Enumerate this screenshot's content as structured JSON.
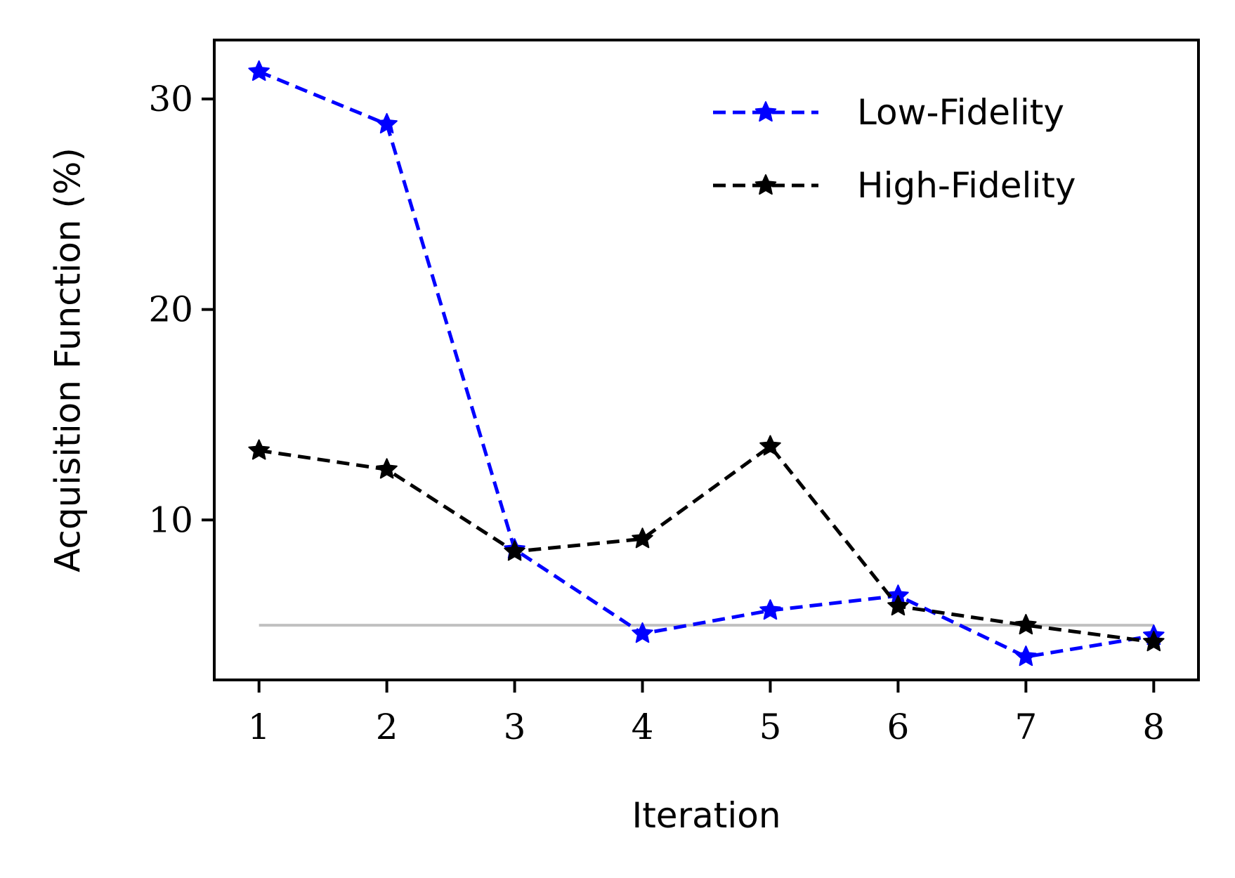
{
  "chart_data": {
    "type": "line",
    "title": "",
    "xlabel": "Iteration",
    "ylabel": "Acquisition Function (%)",
    "x": [
      1,
      2,
      3,
      4,
      5,
      6,
      7,
      8
    ],
    "xlim": [
      0.65,
      8.35
    ],
    "ylim": [
      2.4,
      32.8
    ],
    "xticks": [
      1,
      2,
      3,
      4,
      5,
      6,
      7,
      8
    ],
    "yticks": [
      10,
      20,
      30
    ],
    "grid": false,
    "legend_position": "top-right",
    "series": [
      {
        "name": "Low-Fidelity",
        "values": [
          31.3,
          28.8,
          8.6,
          4.6,
          5.7,
          6.4,
          3.5,
          4.5
        ],
        "color": "#0000ff",
        "line_style": "dashed",
        "marker": "star"
      },
      {
        "name": "High-Fidelity",
        "values": [
          13.3,
          12.4,
          8.5,
          9.1,
          13.5,
          5.9,
          5.0,
          4.2
        ],
        "color": "#000000",
        "line_style": "dashed",
        "marker": "star"
      }
    ],
    "reference_line": {
      "y": 5.0,
      "color": "#c0c0c0",
      "x_range": [
        1,
        8
      ]
    }
  }
}
